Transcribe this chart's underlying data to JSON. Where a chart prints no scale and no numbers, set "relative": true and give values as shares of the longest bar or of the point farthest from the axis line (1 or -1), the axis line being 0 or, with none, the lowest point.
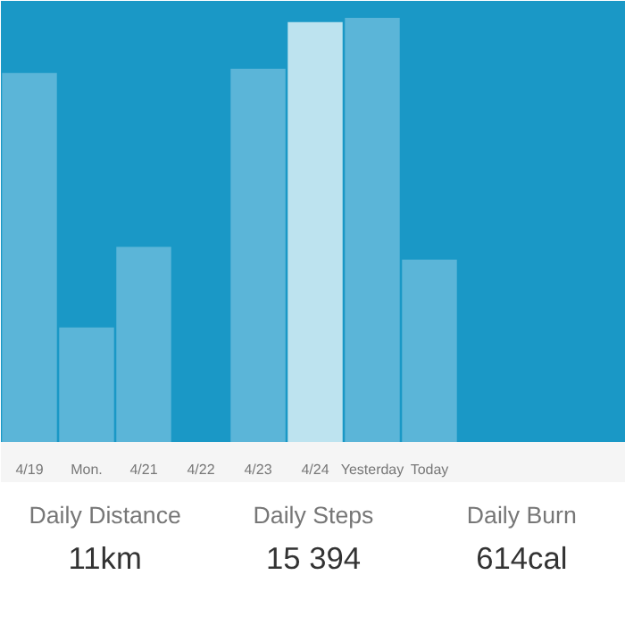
{
  "chart_data": [
    {
      "type": "bar",
      "relative": true,
      "categories": [
        "4/19",
        "Mon.",
        "4/21",
        "4/22",
        "4/23",
        "4/24",
        "Yesterday",
        "Today"
      ],
      "values": [
        0.87,
        0.27,
        0.46,
        0,
        0.88,
        0.99,
        1,
        0.43
      ],
      "colors": [
        "#5bb5d8",
        "#5bb5d8",
        "#5bb5d8",
        "#5bb5d8",
        "#5bb5d8",
        "#bde3ef",
        "#5bb5d8",
        "#5bb5d8"
      ],
      "grid": false
    },
    {
      "type": "other",
      "annotations": [
        "Daily Distance",
        "Daily Steps",
        "Daily Burn",
        "11km",
        "15 394",
        "614cal"
      ]
    }
  ]
}
